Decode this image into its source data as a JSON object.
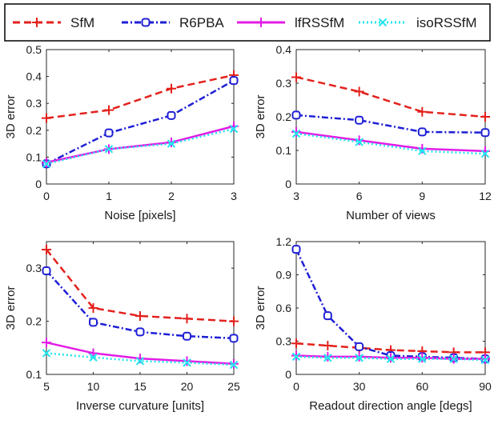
{
  "legend": {
    "entries": [
      {
        "name": "SfM",
        "color": "#e3211c",
        "dash": "dashed",
        "marker": "plus"
      },
      {
        "name": "R6PBA",
        "color": "#1f1fd6",
        "dash": "dashdot",
        "marker": "square"
      },
      {
        "name": "lfRSSfM",
        "color": "#e21ce6",
        "dash": "solid",
        "marker": "plus"
      },
      {
        "name": "isoRSSfM",
        "color": "#22e4ee",
        "dash": "dotted",
        "marker": "x"
      }
    ]
  },
  "chart_data": [
    {
      "type": "line",
      "title": "",
      "xlabel": "Noise [pixels]",
      "ylabel": "3D error",
      "x": [
        0,
        1,
        2,
        3
      ],
      "xlim": [
        0,
        3
      ],
      "ylim": [
        0,
        0.5
      ],
      "xticks": [
        "0",
        "1",
        "2",
        "3"
      ],
      "yticks": [
        "0",
        "0.1",
        "0.2",
        "0.3",
        "0.4",
        "0.5"
      ],
      "series": [
        {
          "name": "SfM",
          "values": [
            0.245,
            0.275,
            0.355,
            0.405
          ]
        },
        {
          "name": "R6PBA",
          "values": [
            0.075,
            0.19,
            0.255,
            0.385
          ]
        },
        {
          "name": "lfRSSfM",
          "values": [
            0.08,
            0.13,
            0.155,
            0.215
          ]
        },
        {
          "name": "isoRSSfM",
          "values": [
            0.075,
            0.13,
            0.15,
            0.205
          ]
        }
      ]
    },
    {
      "type": "line",
      "title": "",
      "xlabel": "Number of views",
      "ylabel": "3D error",
      "x": [
        3,
        6,
        9,
        12
      ],
      "xlim": [
        3,
        12
      ],
      "ylim": [
        0,
        0.4
      ],
      "xticks": [
        "3",
        "6",
        "9",
        "12"
      ],
      "yticks": [
        "0",
        "0.1",
        "0.2",
        "0.3",
        "0.4"
      ],
      "series": [
        {
          "name": "SfM",
          "values": [
            0.318,
            0.275,
            0.215,
            0.2
          ]
        },
        {
          "name": "R6PBA",
          "values": [
            0.205,
            0.19,
            0.155,
            0.153
          ]
        },
        {
          "name": "lfRSSfM",
          "values": [
            0.155,
            0.13,
            0.105,
            0.098
          ]
        },
        {
          "name": "isoRSSfM",
          "values": [
            0.15,
            0.125,
            0.098,
            0.09
          ]
        }
      ]
    },
    {
      "type": "line",
      "title": "",
      "xlabel": "Inverse curvature [units]",
      "ylabel": "3D error",
      "x": [
        5,
        10,
        15,
        20,
        25
      ],
      "xlim": [
        5,
        25
      ],
      "ylim": [
        0.1,
        0.35
      ],
      "xticks": [
        "5",
        "10",
        "15",
        "20",
        "25"
      ],
      "yticks": [
        "0.1",
        "0.2",
        "0.3"
      ],
      "series": [
        {
          "name": "SfM",
          "values": [
            0.335,
            0.225,
            0.21,
            0.205,
            0.2
          ]
        },
        {
          "name": "R6PBA",
          "values": [
            0.295,
            0.198,
            0.18,
            0.172,
            0.168
          ]
        },
        {
          "name": "lfRSSfM",
          "values": [
            0.16,
            0.14,
            0.13,
            0.125,
            0.12
          ]
        },
        {
          "name": "isoRSSfM",
          "values": [
            0.14,
            0.132,
            0.125,
            0.122,
            0.118
          ]
        }
      ]
    },
    {
      "type": "line",
      "title": "",
      "xlabel": "Readout direction angle [degs]",
      "ylabel": "3D error",
      "x": [
        0,
        15,
        30,
        45,
        60,
        75,
        90
      ],
      "xlim": [
        0,
        90
      ],
      "ylim": [
        0,
        1.2
      ],
      "xticks": [
        "0",
        "30",
        "60",
        "90"
      ],
      "yticks": [
        "0",
        "0.3",
        "0.6",
        "0.9",
        "1.2"
      ],
      "series": [
        {
          "name": "SfM",
          "values": [
            0.28,
            0.26,
            0.24,
            0.22,
            0.21,
            0.2,
            0.2
          ]
        },
        {
          "name": "R6PBA",
          "values": [
            1.13,
            0.53,
            0.25,
            0.17,
            0.16,
            0.15,
            0.14
          ]
        },
        {
          "name": "lfRSSfM",
          "values": [
            0.17,
            0.16,
            0.16,
            0.15,
            0.15,
            0.14,
            0.14
          ]
        },
        {
          "name": "isoRSSfM",
          "values": [
            0.16,
            0.15,
            0.15,
            0.14,
            0.14,
            0.14,
            0.13
          ]
        }
      ]
    }
  ]
}
